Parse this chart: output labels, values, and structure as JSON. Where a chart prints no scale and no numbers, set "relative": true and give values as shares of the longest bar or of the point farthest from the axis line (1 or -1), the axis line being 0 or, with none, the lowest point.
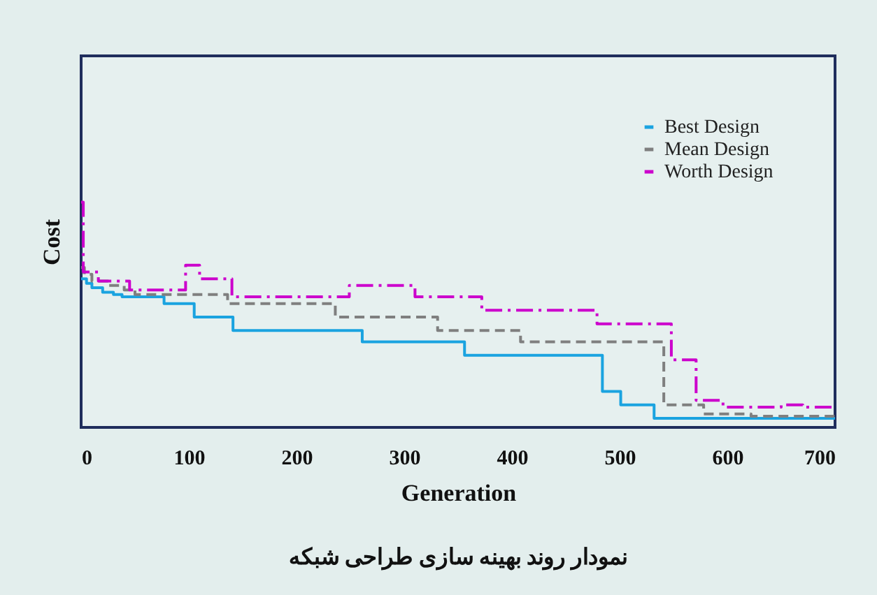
{
  "chart_data": {
    "type": "step",
    "xlabel": "Generation",
    "ylabel": "Cost",
    "relative": true,
    "xlim": [
      0,
      700
    ],
    "xticks": [
      0,
      100,
      200,
      300,
      400,
      500,
      600,
      700
    ],
    "grid": false,
    "legend": "top right",
    "annotations": [
      "نمودار روند بهینه سازی طراحی شبکه"
    ],
    "series": [
      {
        "name": "Best Design",
        "color": "#1aa3e0",
        "line_style": "solid",
        "x": [
          0,
          5,
          10,
          20,
          30,
          38,
          77,
          105,
          141,
          261,
          356,
          484,
          501,
          532,
          700
        ],
        "values": [
          0.66,
          0.64,
          0.62,
          0.6,
          0.59,
          0.58,
          0.55,
          0.49,
          0.43,
          0.38,
          0.32,
          0.16,
          0.1,
          0.04,
          0.04
        ]
      },
      {
        "name": "Mean Design",
        "color": "#7f7f7f",
        "line_style": "dashed",
        "x": [
          0,
          3,
          10,
          25,
          40,
          50,
          136,
          236,
          331,
          408,
          541,
          578,
          622,
          700
        ],
        "values": [
          0.71,
          0.68,
          0.65,
          0.63,
          0.61,
          0.59,
          0.55,
          0.49,
          0.43,
          0.38,
          0.1,
          0.06,
          0.05,
          0.05
        ]
      },
      {
        "name": "Worth Design",
        "color": "#cc00cc",
        "line_style": "dotted",
        "x": [
          0,
          2,
          16,
          45,
          97,
          110,
          140,
          249,
          310,
          372,
          479,
          548,
          571,
          596,
          650,
          670,
          700
        ],
        "values": [
          1.0,
          0.69,
          0.65,
          0.61,
          0.72,
          0.66,
          0.58,
          0.63,
          0.58,
          0.52,
          0.46,
          0.3,
          0.12,
          0.09,
          0.1,
          0.09,
          0.09
        ]
      }
    ]
  }
}
